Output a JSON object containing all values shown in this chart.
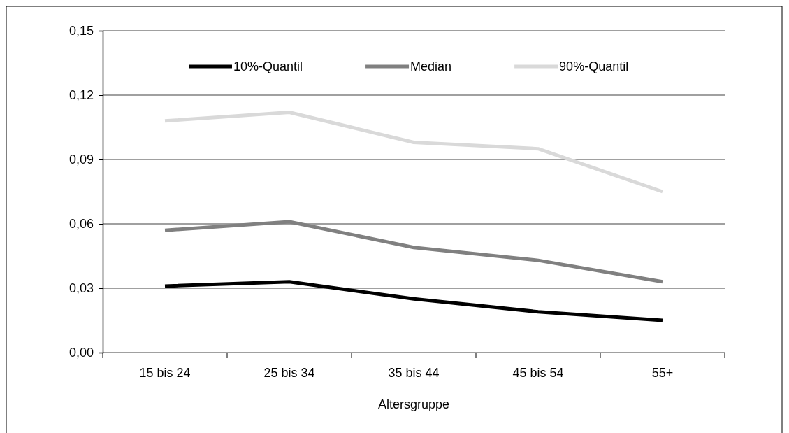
{
  "chart_data": {
    "type": "line",
    "xlabel": "Altersgruppe",
    "categories": [
      "15 bis 24",
      "25 bis 34",
      "35 bis 44",
      "45 bis 54",
      "55+"
    ],
    "series": [
      {
        "name": "10%-Quantil",
        "color": "#000000",
        "values": [
          0.031,
          0.033,
          0.025,
          0.019,
          0.015
        ]
      },
      {
        "name": "Median",
        "color": "#808080",
        "values": [
          0.057,
          0.061,
          0.049,
          0.043,
          0.033
        ]
      },
      {
        "name": "90%-Quantil",
        "color": "#d9d9d9",
        "values": [
          0.108,
          0.112,
          0.098,
          0.095,
          0.075
        ]
      }
    ],
    "ylim": [
      0,
      0.15
    ],
    "yticks": [
      {
        "value": 0,
        "label": "0,00"
      },
      {
        "value": 0.03,
        "label": "0,03"
      },
      {
        "value": 0.06,
        "label": "0,06"
      },
      {
        "value": 0.09,
        "label": "0,09"
      },
      {
        "value": 0.12,
        "label": "0,12"
      },
      {
        "value": 0.15,
        "label": "0,15"
      }
    ],
    "grid": "y",
    "legend": "top",
    "marker": "none",
    "line_style": "solid"
  }
}
